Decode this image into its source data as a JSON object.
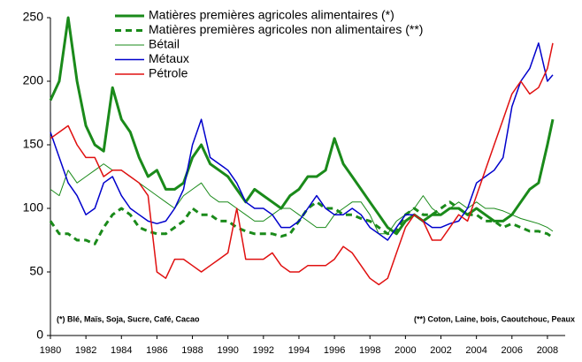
{
  "chart_data": {
    "type": "line",
    "x": [
      1980,
      1980.5,
      1981,
      1981.5,
      1982,
      1982.5,
      1983,
      1983.5,
      1984,
      1984.5,
      1985,
      1985.5,
      1986,
      1986.5,
      1987,
      1987.5,
      1988,
      1988.5,
      1989,
      1989.5,
      1990,
      1990.5,
      1991,
      1991.5,
      1992,
      1992.5,
      1993,
      1993.5,
      1994,
      1994.5,
      1995,
      1995.5,
      1996,
      1996.5,
      1997,
      1997.5,
      1998,
      1998.5,
      1999,
      1999.5,
      2000,
      2000.5,
      2001,
      2001.5,
      2002,
      2002.5,
      2003,
      2003.5,
      2004,
      2004.5,
      2005,
      2005.5,
      2006,
      2006.5,
      2007,
      2007.5,
      2008,
      2008.3
    ],
    "series": [
      {
        "name": "Matières premières agricoles alimentaires (*)",
        "color": "#1a8a1a",
        "width": 3,
        "dash": false,
        "values": [
          185,
          200,
          250,
          200,
          165,
          150,
          145,
          195,
          170,
          160,
          140,
          125,
          130,
          115,
          115,
          120,
          140,
          150,
          135,
          130,
          125,
          115,
          105,
          115,
          110,
          105,
          100,
          110,
          115,
          125,
          125,
          130,
          155,
          135,
          125,
          115,
          105,
          95,
          85,
          80,
          90,
          95,
          90,
          95,
          95,
          100,
          100,
          95,
          100,
          95,
          90,
          90,
          95,
          105,
          115,
          120,
          150,
          170
        ]
      },
      {
        "name": "Matières premières agricoles non alimentaires (**)",
        "color": "#1a8a1a",
        "width": 3,
        "dash": true,
        "values": [
          90,
          80,
          80,
          75,
          75,
          72,
          85,
          95,
          100,
          95,
          85,
          82,
          80,
          80,
          85,
          90,
          100,
          95,
          95,
          90,
          90,
          85,
          82,
          80,
          80,
          80,
          78,
          80,
          90,
          100,
          105,
          100,
          100,
          95,
          95,
          92,
          90,
          85,
          80,
          82,
          95,
          100,
          95,
          95,
          100,
          105,
          100,
          95,
          95,
          90,
          90,
          85,
          88,
          85,
          82,
          82,
          80,
          77
        ]
      },
      {
        "name": "Bétail",
        "color": "#1a8a1a",
        "width": 1,
        "dash": false,
        "values": [
          115,
          110,
          130,
          120,
          125,
          130,
          135,
          130,
          130,
          125,
          120,
          115,
          110,
          105,
          100,
          110,
          115,
          120,
          110,
          105,
          105,
          100,
          95,
          90,
          90,
          95,
          100,
          100,
          95,
          90,
          85,
          85,
          95,
          100,
          105,
          105,
          95,
          80,
          80,
          90,
          95,
          100,
          110,
          100,
          95,
          100,
          105,
          100,
          105,
          100,
          100,
          98,
          95,
          92,
          90,
          88,
          85,
          82
        ]
      },
      {
        "name": "Métaux",
        "color": "#0000cc",
        "width": 1.5,
        "dash": false,
        "values": [
          160,
          140,
          120,
          110,
          95,
          100,
          120,
          125,
          110,
          100,
          95,
          90,
          88,
          90,
          100,
          115,
          150,
          170,
          140,
          135,
          130,
          120,
          105,
          100,
          100,
          95,
          85,
          85,
          90,
          100,
          110,
          100,
          95,
          95,
          100,
          95,
          85,
          80,
          75,
          85,
          95,
          95,
          90,
          85,
          85,
          88,
          90,
          100,
          120,
          125,
          130,
          140,
          180,
          200,
          210,
          230,
          200,
          205
        ]
      },
      {
        "name": "Pétrole",
        "color": "#e01010",
        "width": 1.5,
        "dash": false,
        "values": [
          155,
          160,
          165,
          150,
          140,
          140,
          125,
          130,
          130,
          125,
          120,
          110,
          50,
          45,
          60,
          60,
          55,
          50,
          55,
          60,
          65,
          100,
          60,
          60,
          60,
          65,
          55,
          50,
          50,
          55,
          55,
          55,
          60,
          70,
          65,
          55,
          45,
          40,
          45,
          65,
          85,
          95,
          90,
          75,
          75,
          85,
          95,
          90,
          110,
          130,
          150,
          170,
          190,
          200,
          190,
          195,
          210,
          230
        ]
      }
    ],
    "xlim": [
      1980,
      2009
    ],
    "ylim": [
      0,
      250
    ],
    "xticks": [
      1980,
      1982,
      1984,
      1986,
      1988,
      1990,
      1992,
      1994,
      1996,
      1998,
      2000,
      2002,
      2004,
      2006,
      2008
    ],
    "yticks": [
      0,
      50,
      100,
      150,
      200,
      250
    ],
    "annotations": [
      "(*) Blé, Maïs, Soja, Sucre, Café, Cacao",
      "(**) Coton, Laine, bois, Caoutchouc, Peaux"
    ]
  }
}
